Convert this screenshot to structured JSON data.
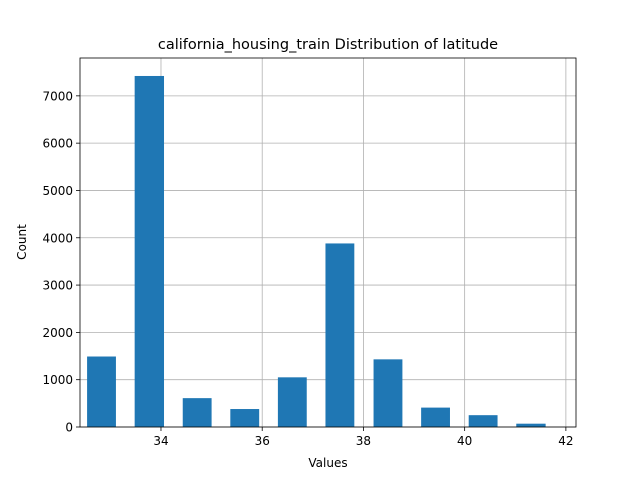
{
  "chart_data": {
    "type": "bar",
    "title": "california_housing_train Distribution of latitude",
    "xlabel": "Values",
    "ylabel": "Count",
    "xlim": [
      32.4,
      42.2
    ],
    "ylim": [
      0,
      7800
    ],
    "xticks": [
      34,
      36,
      38,
      40,
      42
    ],
    "yticks": [
      0,
      1000,
      2000,
      3000,
      4000,
      5000,
      6000,
      7000
    ],
    "grid": true,
    "bar_color": "#1f77b4",
    "bins": [
      {
        "start": 32.54,
        "end": 33.11,
        "count": 1490
      },
      {
        "start": 33.48,
        "end": 34.06,
        "count": 7420
      },
      {
        "start": 34.43,
        "end": 35.0,
        "count": 610
      },
      {
        "start": 35.37,
        "end": 35.94,
        "count": 380
      },
      {
        "start": 36.31,
        "end": 36.88,
        "count": 1050
      },
      {
        "start": 37.25,
        "end": 37.82,
        "count": 3880
      },
      {
        "start": 38.2,
        "end": 38.77,
        "count": 1430
      },
      {
        "start": 39.14,
        "end": 39.71,
        "count": 410
      },
      {
        "start": 40.08,
        "end": 40.65,
        "count": 250
      },
      {
        "start": 41.02,
        "end": 41.6,
        "count": 70
      }
    ]
  }
}
